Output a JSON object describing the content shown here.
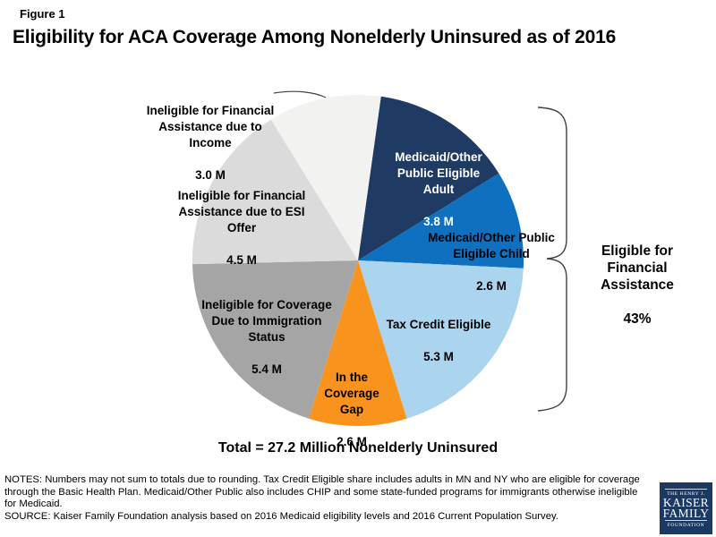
{
  "figure_label": "Figure 1",
  "title": "Eligibility for ACA Coverage Among Nonelderly Uninsured as of 2016",
  "chart_data": {
    "type": "pie",
    "title": "Eligibility for ACA Coverage Among Nonelderly Uninsured as of 2016",
    "total": 27.2,
    "total_label": "Total = 27.2 Million Nonelderly Uninsured",
    "units": "millions of people",
    "start_angle_deg": 8,
    "legend_position": "labels-on-slices",
    "slices": [
      {
        "label": "Medicaid/Other Public Eligible Adult",
        "label_display": "Medicaid/Other\nPublic Eligible\nAdult",
        "value": 3.8,
        "value_label": "3.8 M",
        "color": "#1F3B63",
        "text_color": "#FFFFFF"
      },
      {
        "label": "Medicaid/Other Public Eligible Child",
        "label_display": "Medicaid/Other Public\nEligible Child",
        "value": 2.6,
        "value_label": "2.6 M",
        "color": "#0E70BE",
        "text_color": "#000000"
      },
      {
        "label": "Tax Credit Eligible",
        "label_display": "Tax Credit Eligible",
        "value": 5.3,
        "value_label": "5.3 M",
        "color": "#ABD4EF",
        "text_color": "#000000"
      },
      {
        "label": "In the Coverage Gap",
        "label_display": "In the\nCoverage\nGap",
        "value": 2.6,
        "value_label": "2.6 M",
        "color": "#F8941E",
        "text_color": "#000000"
      },
      {
        "label": "Ineligible for Coverage Due to Immigration Status",
        "label_display": "Ineligible for Coverage\nDue to Immigration\nStatus",
        "value": 5.4,
        "value_label": "5.4 M",
        "color": "#A5A5A5",
        "text_color": "#000000"
      },
      {
        "label": "Ineligible for Financial Assistance due to ESI Offer",
        "label_display": "Ineligible for Financial\nAssistance due to ESI\nOffer",
        "value": 4.5,
        "value_label": "4.5 M",
        "color": "#DBDBDB",
        "text_color": "#000000"
      },
      {
        "label": "Ineligible for Financial Assistance due to Income",
        "label_display": "Ineligible for Financial\nAssistance due to\nIncome",
        "value": 3.0,
        "value_label": "3.0 M",
        "color": "#F2F2F0",
        "text_color": "#000000"
      }
    ],
    "annotation": {
      "label": "Eligible for Financial Assistance",
      "label_display": "Eligible for\nFinancial\nAssistance",
      "value": "43%"
    }
  },
  "footer": {
    "notes": "NOTES: Numbers may not sum to totals due to rounding.  Tax Credit Eligible share includes adults in MN and NY who are eligible for coverage through the Basic Health Plan. Medicaid/Other Public also includes CHIP and some state-funded programs for immigrants otherwise ineligible for Medicaid.",
    "source": "SOURCE: Kaiser Family Foundation  analysis based on 2016 Medicaid eligibility levels and 2016 Current Population Survey."
  },
  "logo": {
    "line1": "THE HENRY J.",
    "line2": "KAISER",
    "line3": "FAMILY",
    "line4": "FOUNDATION",
    "bg_color": "#1B3963"
  }
}
